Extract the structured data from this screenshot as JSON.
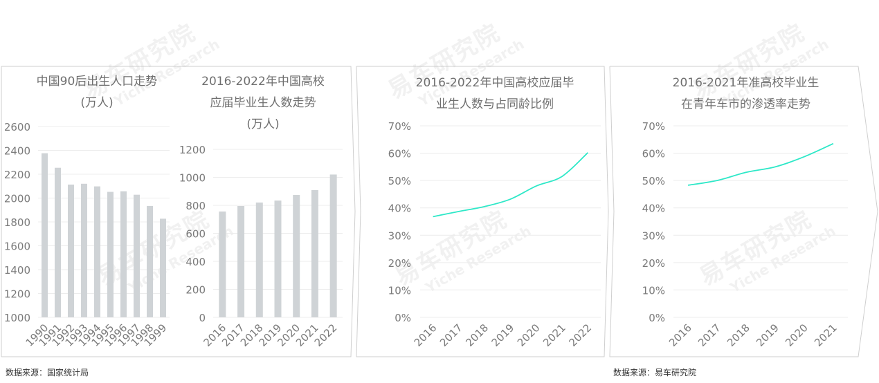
{
  "colors": {
    "bar": "#cfd3d6",
    "line": "#2ee8c8",
    "grid": "#ececec",
    "frame": "#cfcfcf",
    "tick": "#7a7a7a"
  },
  "watermark": {
    "cn": "易车研究院",
    "en": "Yiche Research"
  },
  "sources": {
    "left": "数据来源：国家统计局",
    "right": "数据来源：易车研究院"
  },
  "chart_data": [
    {
      "type": "bar",
      "title": "中国90后出生人口走势\n(万人)",
      "categories": [
        "1990",
        "1991",
        "1992",
        "1993",
        "1994",
        "1995",
        "1996",
        "1997",
        "1998",
        "1999"
      ],
      "values": [
        2376,
        2254,
        2113,
        2120,
        2098,
        2052,
        2057,
        2028,
        1934,
        1827
      ],
      "ylim": [
        1000,
        2600
      ],
      "yticks": [
        1000,
        1200,
        1400,
        1600,
        1800,
        2000,
        2200,
        2400,
        2600
      ],
      "grid": true
    },
    {
      "type": "bar",
      "title": "2016-2022年中国高校\n应届毕业生人数走势\n(万人)",
      "categories": [
        "2016",
        "2017",
        "2018",
        "2019",
        "2020",
        "2021",
        "2022"
      ],
      "values": [
        756,
        795,
        820,
        834,
        874,
        909,
        1020
      ],
      "ylim": [
        0,
        1200
      ],
      "yticks": [
        0,
        200,
        400,
        600,
        800,
        1000,
        1200
      ],
      "grid": true
    },
    {
      "type": "line",
      "title": "2016-2022年中国高校应届毕\n业生人数与占同龄比例",
      "categories": [
        "2016",
        "2017",
        "2018",
        "2019",
        "2020",
        "2021",
        "2022"
      ],
      "values": [
        36.8,
        38.7,
        40.5,
        43.2,
        48.0,
        51.5,
        60.2
      ],
      "ylim": [
        0,
        70
      ],
      "yticks": [
        "0%",
        "10%",
        "20%",
        "30%",
        "40%",
        "50%",
        "60%",
        "70%"
      ],
      "grid": true
    },
    {
      "type": "line",
      "title": "2016-2021年准高校毕业生\n在青年车市的渗透率走势",
      "categories": [
        "2016",
        "2017",
        "2018",
        "2019",
        "2020",
        "2021"
      ],
      "values": [
        48.3,
        50.0,
        53.0,
        55.0,
        58.7,
        63.5
      ],
      "ylim": [
        0,
        70
      ],
      "yticks": [
        "0%",
        "10%",
        "20%",
        "30%",
        "40%",
        "50%",
        "60%",
        "70%"
      ],
      "grid": true
    }
  ]
}
